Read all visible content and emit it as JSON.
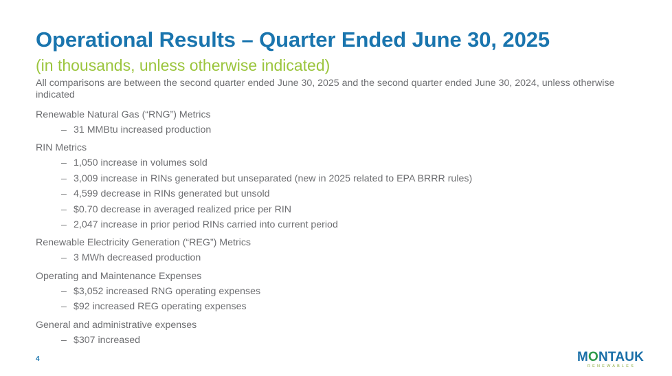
{
  "slide": {
    "title": "Operational Results – Quarter Ended June 30, 2025",
    "subtitle": "(in thousands, unless otherwise indicated)",
    "intro": "All comparisons are between the second quarter ended June 30, 2025 and the second quarter ended June 30, 2024, unless otherwise indicated",
    "page_number": "4",
    "colors": {
      "title": "#1a75ae",
      "subtitle": "#9bc53d",
      "body": "#6d6e71"
    }
  },
  "sections": [
    {
      "heading": "Renewable Natural Gas (“RNG”) Metrics",
      "bullets": [
        "31 MMBtu increased production"
      ]
    },
    {
      "heading": "RIN Metrics",
      "bullets": [
        "1,050 increase in volumes sold",
        "3,009 increase in RINs generated but unseparated (new in 2025 related to EPA BRRR rules)",
        "4,599 decrease in RINs generated but unsold",
        "$0.70 decrease in averaged realized price per RIN",
        "2,047 increase in prior period RINs carried into current period"
      ]
    },
    {
      "heading": "Renewable Electricity Generation (“REG”) Metrics",
      "bullets": [
        "3 MWh decreased production"
      ]
    },
    {
      "heading": "Operating and Maintenance Expenses",
      "bullets": [
        "$3,052 increased RNG operating expenses",
        "$92 increased REG operating expenses"
      ]
    },
    {
      "heading": "General and administrative expenses",
      "bullets": [
        "$307 increased"
      ]
    }
  ],
  "bullet_dash": "–",
  "logo": {
    "part1": "M",
    "o": "O",
    "part2": "NTAUK",
    "tagline": "RENEWABLES"
  }
}
